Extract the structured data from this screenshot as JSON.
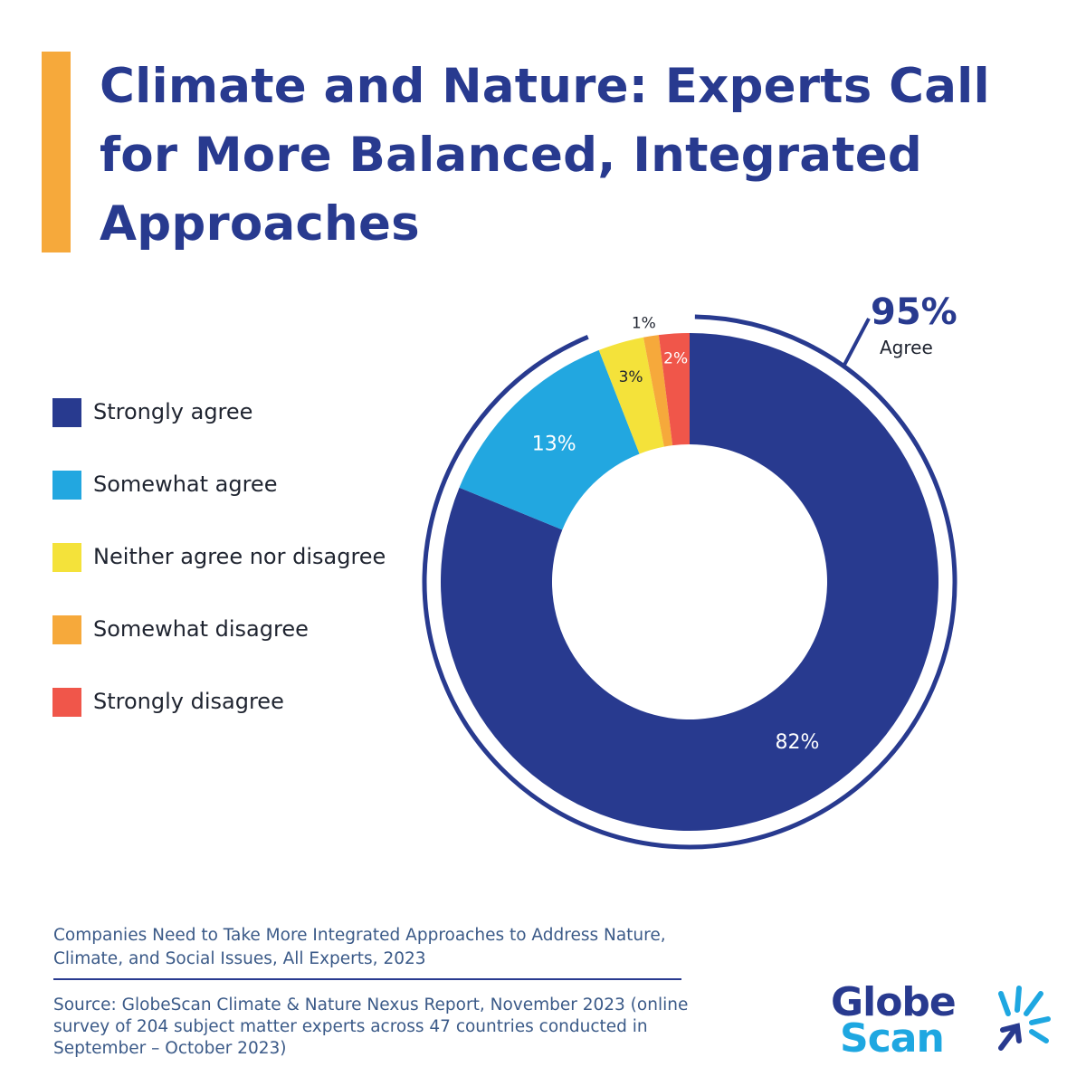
{
  "title": "Climate and Nature: Experts Call for More Balanced, Integrated Approaches",
  "colors": {
    "accent": "#f6a93b",
    "title": "#283a8f",
    "strongly_agree": "#283a8f",
    "somewhat_agree": "#22a7e0",
    "neither": "#f4e23a",
    "somewhat_disagree": "#f6a93b",
    "strongly_disagree": "#f0564a"
  },
  "legend": [
    {
      "label": "Strongly agree",
      "color": "#283a8f"
    },
    {
      "label": "Somewhat agree",
      "color": "#22a7e0"
    },
    {
      "label": "Neither agree nor disagree",
      "color": "#f4e23a"
    },
    {
      "label": "Somewhat disagree",
      "color": "#f6a93b"
    },
    {
      "label": "Strongly disagree",
      "color": "#f0564a"
    }
  ],
  "chart_data": {
    "type": "pie",
    "style": "donut",
    "slices": [
      {
        "name": "Strongly agree",
        "value": 82,
        "label": "82%",
        "color": "#283a8f"
      },
      {
        "name": "Somewhat agree",
        "value": 13,
        "label": "13%",
        "color": "#22a7e0"
      },
      {
        "name": "Neither agree nor disagree",
        "value": 3,
        "label": "3%",
        "color": "#f4e23a"
      },
      {
        "name": "Somewhat disagree",
        "value": 1,
        "label": "1%",
        "color": "#f6a93b"
      },
      {
        "name": "Strongly disagree",
        "value": 2,
        "label": "2%",
        "color": "#f0564a"
      }
    ],
    "annotation": {
      "value": "95%",
      "text": "Agree"
    }
  },
  "caption": "Companies Need to Take More Integrated Approaches to Address Nature, Climate, and Social Issues, All Experts, 2023",
  "source": "Source: GlobeScan Climate & Nature Nexus Report, November 2023 (online survey of 204 subject matter experts across 47 countries conducted in September – October 2023)",
  "logo": {
    "line1": "Globe",
    "line2": "Scan"
  }
}
